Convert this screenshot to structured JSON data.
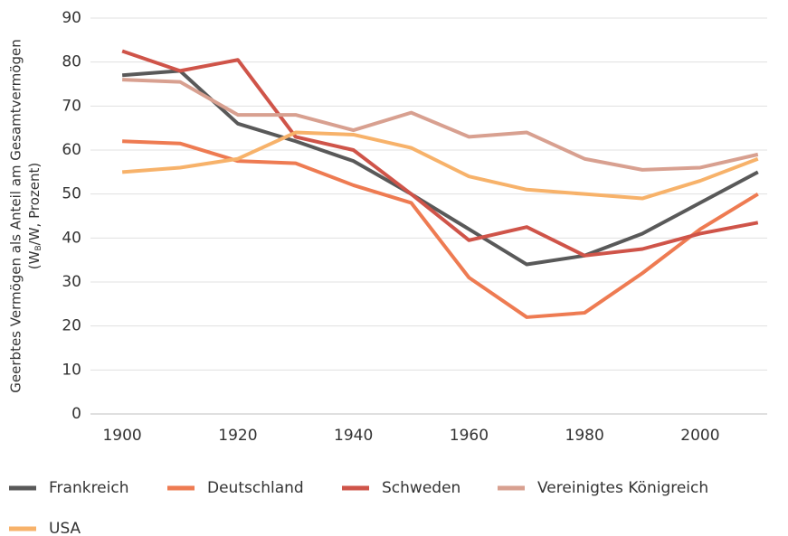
{
  "chart_data": {
    "type": "line",
    "ylabel": {
      "line1": "Geerbtes Vermögen als Anteil am Gesamtvermögen",
      "line2": [
        "(W",
        "B",
        "/W, Prozent)"
      ]
    },
    "x": [
      1900,
      1910,
      1920,
      1930,
      1940,
      1950,
      1960,
      1970,
      1980,
      1990,
      2000,
      2010
    ],
    "xlim": [
      1894.5,
      2011.6
    ],
    "xticks": [
      1900,
      1920,
      1940,
      1960,
      1980,
      2000
    ],
    "ylim": [
      0,
      90
    ],
    "yticks": [
      0,
      10,
      20,
      30,
      40,
      50,
      60,
      70,
      80,
      90
    ],
    "grid": true,
    "legend": "bottom",
    "series": [
      {
        "name": "Frankreich",
        "color": "#595959",
        "values": [
          77,
          78,
          66,
          62,
          57.5,
          50,
          42,
          34,
          36,
          41,
          48,
          55
        ]
      },
      {
        "name": "Deutschland",
        "color": "#ee7b52",
        "values": [
          62,
          61.5,
          57.5,
          57,
          52,
          48,
          31,
          22,
          23,
          32,
          42,
          50
        ]
      },
      {
        "name": "Schweden",
        "color": "#cf5449",
        "values": [
          82.5,
          78,
          80.5,
          63,
          60,
          50,
          39.5,
          42.5,
          36,
          37.5,
          41,
          43.5
        ]
      },
      {
        "name": "Vereinigtes Königreich",
        "color": "#d8a090",
        "values": [
          76,
          75.5,
          68,
          68,
          64.5,
          68.5,
          63,
          64,
          58,
          55.5,
          56,
          59
        ]
      },
      {
        "name": "USA",
        "color": "#f7b26a",
        "values": [
          55,
          56,
          58,
          64,
          63.5,
          60.5,
          54,
          51,
          50,
          49,
          53,
          58
        ]
      }
    ]
  }
}
